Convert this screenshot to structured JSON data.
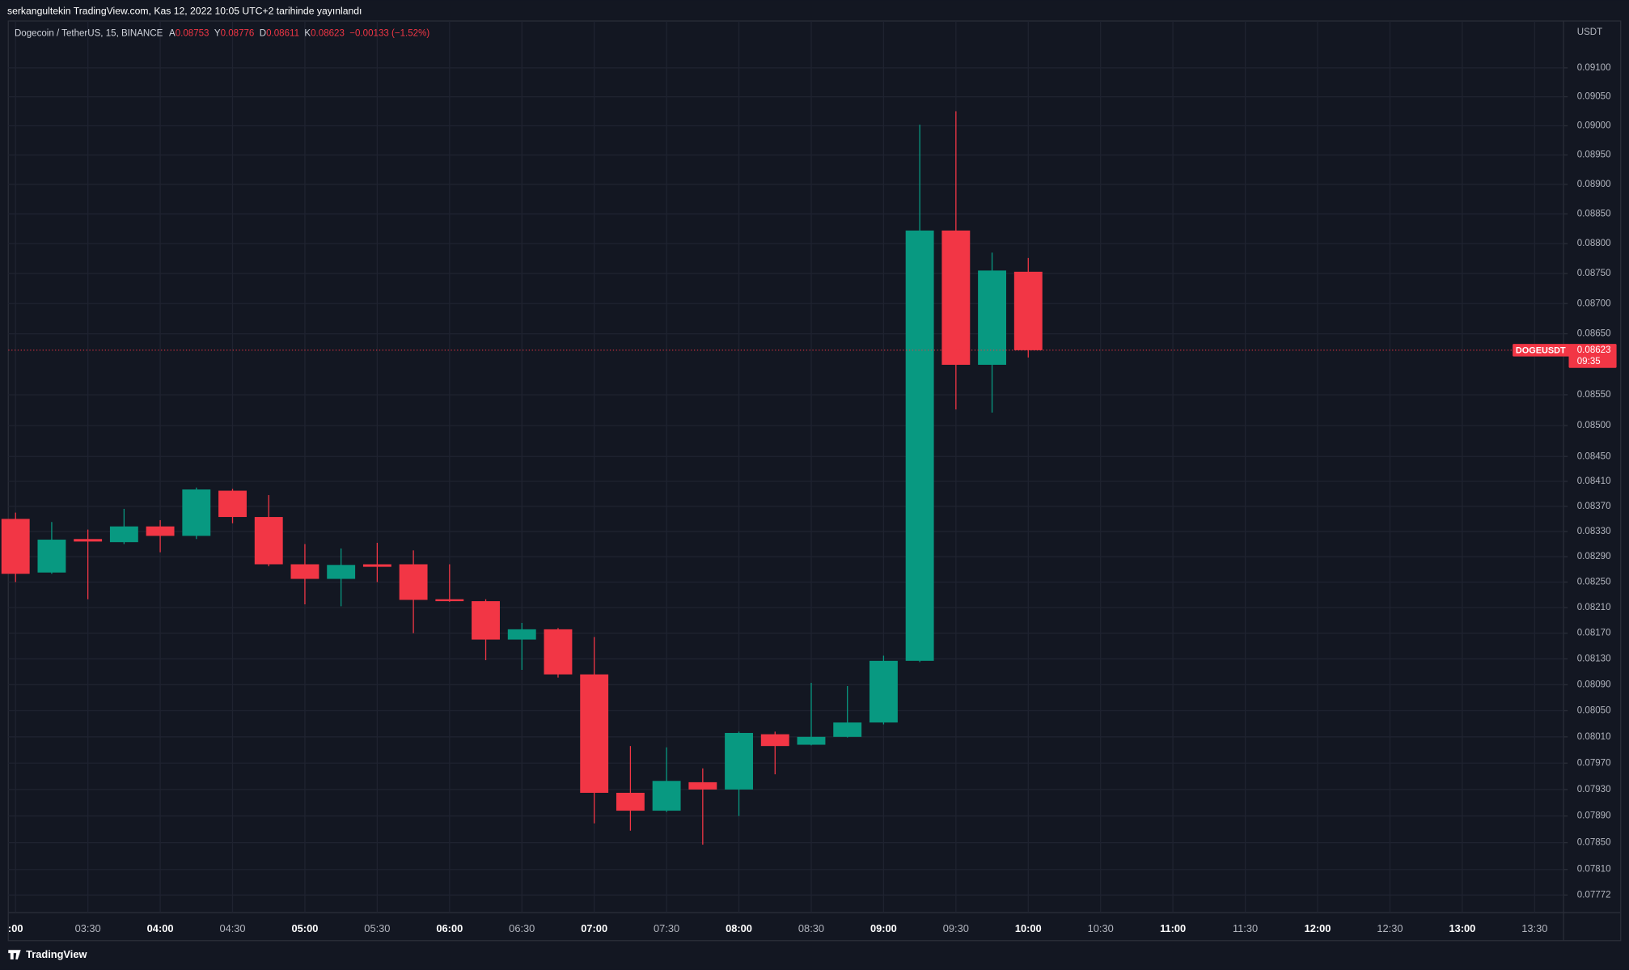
{
  "header": {
    "publisher": "serkangultekin TradingView.com, Kas 12, 2022 10:05 UTC+2 tarihinde yayınlandı",
    "brand": "TradingView"
  },
  "chart_data": {
    "type": "candlestick",
    "title": "Dogecoin / TetherUS, 15, BINANCE",
    "ohlc_keys": [
      "A",
      "Y",
      "D",
      "K"
    ],
    "change_label": "−0.00133 (−1.52%)",
    "symbol": "DOGEUSDT",
    "countdown": "09:35",
    "y_unit": "USDT",
    "up_color": "#089981",
    "down_color": "#f23645",
    "background": "#131722",
    "grid": true,
    "scale": "log",
    "x": [
      "03:00",
      "03:15",
      "03:30",
      "03:45",
      "04:00",
      "04:15",
      "04:30",
      "04:45",
      "05:00",
      "05:15",
      "05:30",
      "05:45",
      "06:00",
      "06:15",
      "06:30",
      "06:45",
      "07:00",
      "07:15",
      "07:30",
      "07:45",
      "08:00",
      "08:15",
      "08:30",
      "08:45",
      "09:00",
      "09:15",
      "09:30",
      "09:45",
      "10:00"
    ],
    "open": [
      0.0835,
      0.08265,
      0.08318,
      0.08313,
      0.08338,
      0.08323,
      0.08395,
      0.08353,
      0.08278,
      0.08255,
      0.08278,
      0.08278,
      0.08223,
      0.0822,
      0.0816,
      0.08176,
      0.08106,
      0.07925,
      0.07898,
      0.07941,
      0.0793,
      0.08014,
      0.07998,
      0.0801,
      0.08032,
      0.08127,
      0.08822,
      0.08599,
      0.08753
    ],
    "high": [
      0.0836,
      0.08345,
      0.08333,
      0.08366,
      0.08348,
      0.084,
      0.08398,
      0.08388,
      0.0831,
      0.08303,
      0.08312,
      0.083,
      0.08278,
      0.08223,
      0.08186,
      0.08178,
      0.08164,
      0.07996,
      0.07994,
      0.07962,
      0.08018,
      0.08018,
      0.08093,
      0.08088,
      0.08135,
      0.09002,
      0.09025,
      0.08785,
      0.08776
    ],
    "low": [
      0.0825,
      0.08263,
      0.08223,
      0.0831,
      0.08297,
      0.08318,
      0.08343,
      0.08275,
      0.08215,
      0.08212,
      0.0825,
      0.0817,
      0.08219,
      0.08128,
      0.08113,
      0.08101,
      0.07879,
      0.07868,
      0.07896,
      0.07847,
      0.0789,
      0.07953,
      0.07997,
      0.08009,
      0.08029,
      0.08125,
      0.08526,
      0.08521,
      0.08611
    ],
    "close": [
      0.08263,
      0.08317,
      0.08314,
      0.08338,
      0.08323,
      0.08397,
      0.08353,
      0.08278,
      0.08255,
      0.08277,
      0.08274,
      0.08222,
      0.0822,
      0.0816,
      0.08176,
      0.08106,
      0.07925,
      0.07898,
      0.07943,
      0.0793,
      0.08016,
      0.07996,
      0.0801,
      0.08032,
      0.08127,
      0.08822,
      0.08599,
      0.08755,
      0.08623
    ],
    "xlim": [
      177,
      822
    ],
    "xticks": [
      {
        "value": 180,
        "label": ":00"
      },
      {
        "value": 210,
        "label": "03:30"
      },
      {
        "value": 240,
        "label": "04:00"
      },
      {
        "value": 270,
        "label": "04:30"
      },
      {
        "value": 300,
        "label": "05:00"
      },
      {
        "value": 330,
        "label": "05:30"
      },
      {
        "value": 360,
        "label": "06:00"
      },
      {
        "value": 390,
        "label": "06:30"
      },
      {
        "value": 420,
        "label": "07:00"
      },
      {
        "value": 450,
        "label": "07:30"
      },
      {
        "value": 480,
        "label": "08:00"
      },
      {
        "value": 510,
        "label": "08:30"
      },
      {
        "value": 540,
        "label": "09:00"
      },
      {
        "value": 570,
        "label": "09:30"
      },
      {
        "value": 600,
        "label": "10:00"
      },
      {
        "value": 630,
        "label": "10:30"
      },
      {
        "value": 660,
        "label": "11:00"
      },
      {
        "value": 690,
        "label": "11:30"
      },
      {
        "value": 720,
        "label": "12:00"
      },
      {
        "value": 750,
        "label": "12:30"
      },
      {
        "value": 780,
        "label": "13:00"
      },
      {
        "value": 810,
        "label": "13:30"
      }
    ],
    "ylim": [
      0.07746,
      0.09178
    ],
    "yticks": [
      {
        "value": 0.091,
        "label": "0.09100"
      },
      {
        "value": 0.0905,
        "label": "0.09050"
      },
      {
        "value": 0.09,
        "label": "0.09000"
      },
      {
        "value": 0.0895,
        "label": "0.08950"
      },
      {
        "value": 0.089,
        "label": "0.08900"
      },
      {
        "value": 0.0885,
        "label": "0.08850"
      },
      {
        "value": 0.088,
        "label": "0.08800"
      },
      {
        "value": 0.0875,
        "label": "0.08750"
      },
      {
        "value": 0.087,
        "label": "0.08700"
      },
      {
        "value": 0.0865,
        "label": "0.08650"
      },
      {
        "value": 0.0855,
        "label": "0.08550"
      },
      {
        "value": 0.085,
        "label": "0.08500"
      },
      {
        "value": 0.0845,
        "label": "0.08450"
      },
      {
        "value": 0.0841,
        "label": "0.08410"
      },
      {
        "value": 0.0837,
        "label": "0.08370"
      },
      {
        "value": 0.0833,
        "label": "0.08330"
      },
      {
        "value": 0.0829,
        "label": "0.08290"
      },
      {
        "value": 0.0825,
        "label": "0.08250"
      },
      {
        "value": 0.0821,
        "label": "0.08210"
      },
      {
        "value": 0.0817,
        "label": "0.08170"
      },
      {
        "value": 0.0813,
        "label": "0.08130"
      },
      {
        "value": 0.0809,
        "label": "0.08090"
      },
      {
        "value": 0.0805,
        "label": "0.08050"
      },
      {
        "value": 0.0801,
        "label": "0.08010"
      },
      {
        "value": 0.0797,
        "label": "0.07970"
      },
      {
        "value": 0.0793,
        "label": "0.07930"
      },
      {
        "value": 0.0789,
        "label": "0.07890"
      },
      {
        "value": 0.0785,
        "label": "0.07850"
      },
      {
        "value": 0.0781,
        "label": "0.07810"
      },
      {
        "value": 0.07772,
        "label": "0.07772"
      }
    ]
  }
}
